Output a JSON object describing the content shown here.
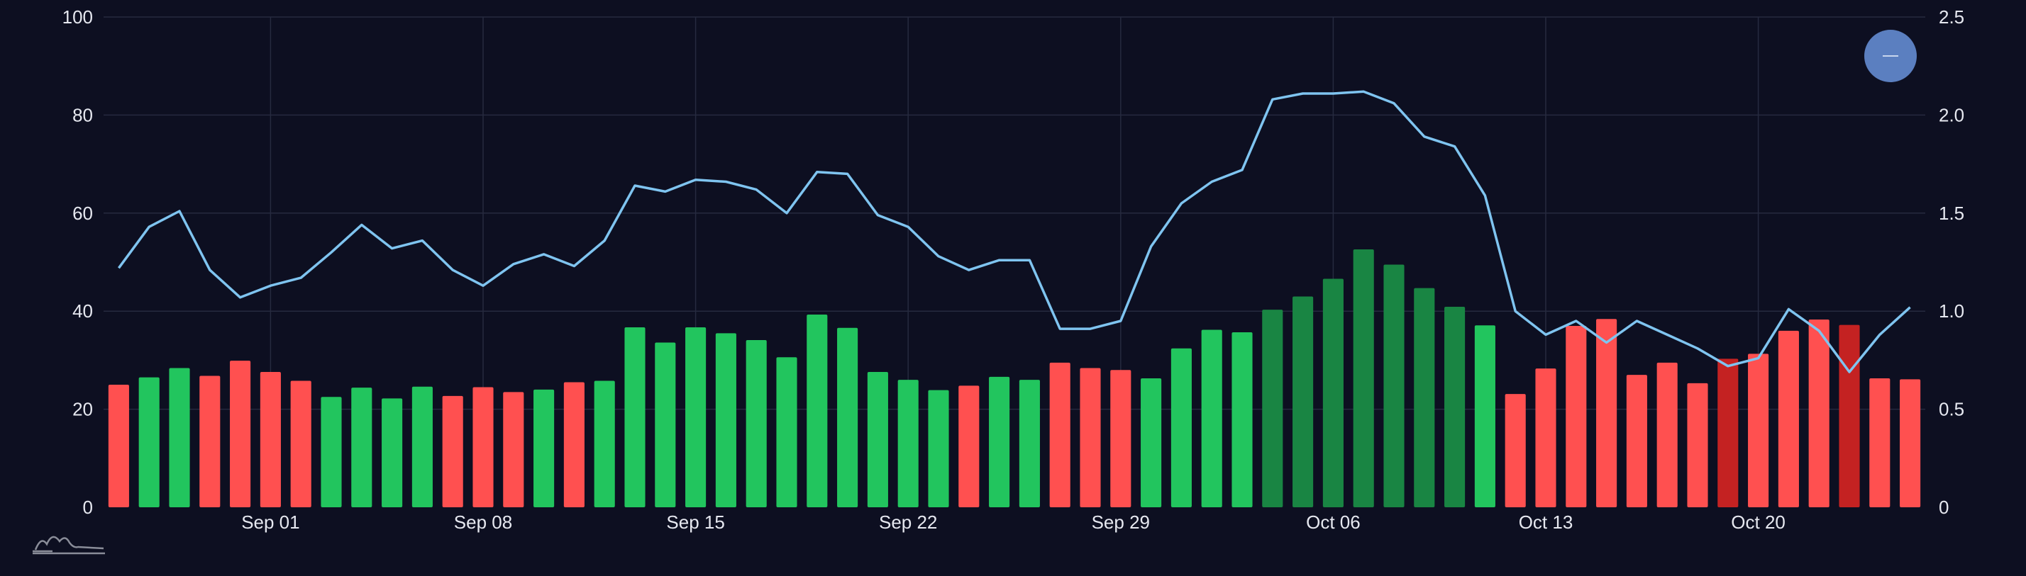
{
  "chart_data": {
    "type": "bar",
    "x_ticks": [
      "Sep 01",
      "Sep 08",
      "Sep 15",
      "Sep 22",
      "Sep 29",
      "Oct 06",
      "Oct 13",
      "Oct 20"
    ],
    "y_left": {
      "ticks": [
        "0",
        "20",
        "40",
        "60",
        "80",
        "100"
      ],
      "range": [
        0,
        100
      ]
    },
    "y_right": {
      "ticks": [
        "0",
        "0.5",
        "1.0",
        "1.5",
        "2.0",
        "2.5"
      ],
      "range": [
        0,
        2.5
      ]
    },
    "grid": true,
    "bar_colors": {
      "red": "#ff5050",
      "green": "#22c55e",
      "darkgreen": "#198543",
      "darkred": "#c42222"
    },
    "line_color": "#7fc4f0",
    "series": [
      {
        "type": "bar",
        "axis": "left",
        "values": [
          25.0,
          26.5,
          28.4,
          26.8,
          29.9,
          27.6,
          25.8,
          22.5,
          24.4,
          22.2,
          24.6,
          22.7,
          24.5,
          23.5,
          24.0,
          25.5,
          25.8,
          36.7,
          33.6,
          36.7,
          35.5,
          34.1,
          30.6,
          39.3,
          36.6,
          27.6,
          26.0,
          23.9,
          24.8,
          26.6,
          26.0,
          29.5,
          28.4,
          28.0,
          26.3,
          32.4,
          36.2,
          35.7,
          40.3,
          43.0,
          46.6,
          52.6,
          49.5,
          44.7,
          40.9,
          37.1,
          23.1,
          28.3,
          37.0,
          38.4,
          27.0,
          29.5,
          25.3,
          30.3,
          31.3,
          36.0,
          38.3,
          37.2,
          26.3,
          26.1
        ],
        "colors": [
          "red",
          "green",
          "green",
          "red",
          "red",
          "red",
          "red",
          "green",
          "green",
          "green",
          "green",
          "red",
          "red",
          "red",
          "green",
          "red",
          "green",
          "green",
          "green",
          "green",
          "green",
          "green",
          "green",
          "green",
          "green",
          "green",
          "green",
          "green",
          "red",
          "green",
          "green",
          "red",
          "red",
          "red",
          "green",
          "green",
          "green",
          "green",
          "darkgreen",
          "darkgreen",
          "darkgreen",
          "darkgreen",
          "darkgreen",
          "darkgreen",
          "darkgreen",
          "green",
          "red",
          "red",
          "red",
          "red",
          "red",
          "red",
          "red",
          "darkred",
          "red",
          "red",
          "red",
          "darkred",
          "red",
          "red"
        ]
      },
      {
        "type": "line",
        "axis": "right",
        "values": [
          1.22,
          1.43,
          1.51,
          1.21,
          1.07,
          1.13,
          1.17,
          1.3,
          1.44,
          1.32,
          1.36,
          1.21,
          1.13,
          1.24,
          1.29,
          1.23,
          1.36,
          1.64,
          1.61,
          1.67,
          1.66,
          1.62,
          1.5,
          1.71,
          1.7,
          1.49,
          1.43,
          1.28,
          1.21,
          1.26,
          1.26,
          0.91,
          0.91,
          0.95,
          1.33,
          1.55,
          1.66,
          1.72,
          2.08,
          2.11,
          2.11,
          2.12,
          2.06,
          1.89,
          1.84,
          1.59,
          1.0,
          0.88,
          0.95,
          0.84,
          0.95,
          0.88,
          0.81,
          0.72,
          0.76,
          1.01,
          0.9,
          0.69,
          0.88,
          1.02
        ]
      }
    ]
  },
  "zoom_button": {
    "label": "—"
  },
  "logo": {
    "name": "mountain-logo-icon"
  }
}
